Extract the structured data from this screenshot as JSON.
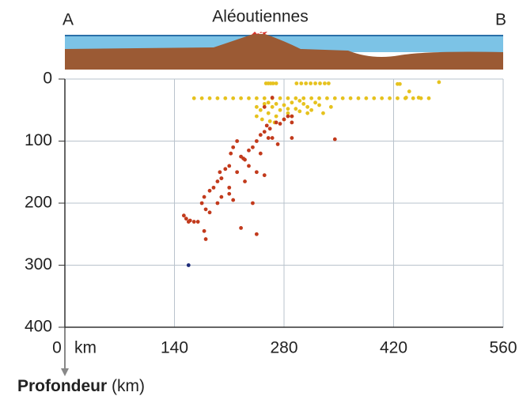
{
  "chart_data": {
    "type": "scatter",
    "title": "Aléoutiennes",
    "left_label": "A",
    "right_label": "B",
    "x_unit": "km",
    "y_label": "Profondeur",
    "y_unit": "(km)",
    "xlim": [
      0,
      560
    ],
    "xticks": [
      0,
      140,
      280,
      420,
      560
    ],
    "ylim": [
      0,
      400
    ],
    "yticks": [
      0,
      100,
      200,
      300,
      400
    ],
    "y_inverted": true,
    "grid": true,
    "series": [
      {
        "color": "#e6c21e",
        "x": [
          257,
          260,
          263,
          266,
          270,
          296,
          302,
          308,
          314,
          320,
          326,
          332,
          337,
          428,
          478,
          165,
          175,
          185,
          195,
          205,
          215,
          225,
          235,
          245,
          255,
          265,
          275,
          285,
          295,
          305,
          315,
          325,
          335,
          345,
          355,
          365,
          375,
          385,
          395,
          405,
          415,
          425,
          435,
          445,
          455,
          465,
          245,
          250,
          255,
          260,
          265,
          270,
          275,
          280,
          285,
          290,
          295,
          300,
          305,
          310,
          315,
          320,
          325,
          300,
          290,
          280,
          262,
          270,
          285,
          310,
          330,
          340,
          260,
          245,
          252,
          268,
          425,
          440,
          436,
          452
        ],
        "values": [
          7,
          7,
          7,
          7,
          7,
          7,
          7,
          7,
          7,
          7,
          7,
          7,
          7,
          8,
          5,
          31,
          31,
          31,
          31,
          31,
          31,
          31,
          31,
          31,
          31,
          31,
          31,
          31,
          31,
          31,
          31,
          31,
          31,
          31,
          31,
          31,
          31,
          31,
          31,
          31,
          31,
          31,
          31,
          31,
          31,
          31,
          45,
          50,
          40,
          55,
          45,
          60,
          50,
          42,
          55,
          38,
          48,
          52,
          40,
          45,
          50,
          38,
          42,
          35,
          60,
          65,
          68,
          40,
          48,
          55,
          55,
          45,
          38,
          60,
          65,
          70,
          8,
          20,
          30,
          30
        ]
      },
      {
        "color": "#c23a1c",
        "x": [
          152,
          155,
          160,
          165,
          170,
          158,
          175,
          178,
          180,
          185,
          190,
          195,
          200,
          198,
          205,
          210,
          212,
          215,
          220,
          225,
          230,
          235,
          240,
          245,
          250,
          255,
          258,
          262,
          265,
          270,
          275,
          280,
          285,
          290,
          272,
          255,
          230,
          220,
          210,
          200,
          195,
          185,
          178,
          200,
          210,
          240,
          235,
          250,
          225,
          260,
          290,
          345,
          245,
          215,
          245,
          180,
          290,
          265,
          255,
          228
        ],
        "values": [
          220,
          225,
          228,
          230,
          230,
          230,
          200,
          190,
          210,
          180,
          175,
          165,
          160,
          150,
          145,
          140,
          120,
          110,
          100,
          125,
          130,
          115,
          110,
          100,
          90,
          85,
          75,
          80,
          95,
          70,
          72,
          65,
          60,
          70,
          105,
          155,
          165,
          150,
          175,
          190,
          200,
          215,
          245,
          160,
          185,
          200,
          140,
          120,
          240,
          95,
          95,
          97,
          150,
          195,
          250,
          258,
          60,
          30,
          45,
          128
        ]
      },
      {
        "color": "#1c2a78",
        "x": [
          158
        ],
        "values": [
          300
        ]
      }
    ]
  }
}
